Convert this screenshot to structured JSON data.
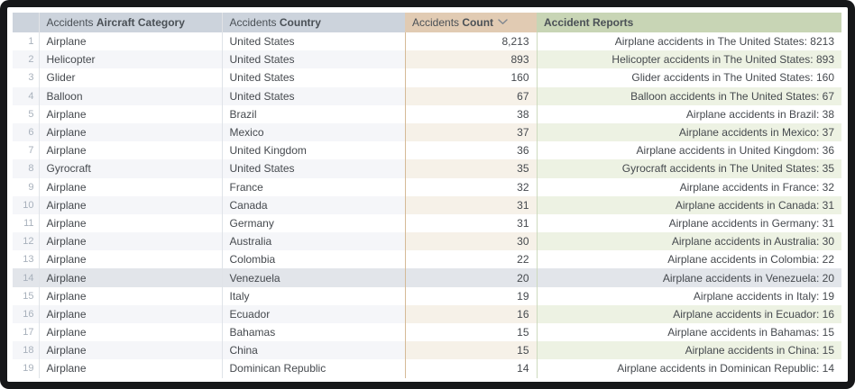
{
  "colors": {
    "frame": "#161719",
    "header_neutral": "#ccd3dc",
    "header_count": "#e1cbb3",
    "header_reports": "#c8d5b5",
    "header_text": "#4a5056",
    "cell_text": "#45494e",
    "rownum_text": "#a8b1bc",
    "stripe_neutral": "#f5f6f9",
    "stripe_count": "#f6f1e8",
    "stripe_reports": "#edf2e3",
    "selected_bg": "#e2e5ea",
    "divider_neutral": "#dfe3e8",
    "divider_count": "#d5ba97",
    "divider_reports": "#cddabe"
  },
  "table": {
    "headers": {
      "category": {
        "prefix": "Accidents",
        "label": "Aircraft Category"
      },
      "country": {
        "prefix": "Accidents",
        "label": "Country"
      },
      "count": {
        "prefix": "Accidents",
        "label": "Count",
        "sort": "descending"
      },
      "reports": {
        "label": "Accident Reports"
      }
    },
    "highlighted_row": 14,
    "rows": [
      {
        "n": "1",
        "category": "Airplane",
        "country": "United States",
        "count": "8,213",
        "report": "Airplane accidents in The United States: 8213"
      },
      {
        "n": "2",
        "category": "Helicopter",
        "country": "United States",
        "count": "893",
        "report": "Helicopter accidents in The United States: 893"
      },
      {
        "n": "3",
        "category": "Glider",
        "country": "United States",
        "count": "160",
        "report": "Glider accidents in The United States: 160"
      },
      {
        "n": "4",
        "category": "Balloon",
        "country": "United States",
        "count": "67",
        "report": "Balloon accidents in The United States: 67"
      },
      {
        "n": "5",
        "category": "Airplane",
        "country": "Brazil",
        "count": "38",
        "report": "Airplane accidents in Brazil: 38"
      },
      {
        "n": "6",
        "category": "Airplane",
        "country": "Mexico",
        "count": "37",
        "report": "Airplane accidents in Mexico: 37"
      },
      {
        "n": "7",
        "category": "Airplane",
        "country": "United Kingdom",
        "count": "36",
        "report": "Airplane accidents in United Kingdom: 36"
      },
      {
        "n": "8",
        "category": "Gyrocraft",
        "country": "United States",
        "count": "35",
        "report": "Gyrocraft accidents in The United States: 35"
      },
      {
        "n": "9",
        "category": "Airplane",
        "country": "France",
        "count": "32",
        "report": "Airplane accidents in France: 32"
      },
      {
        "n": "10",
        "category": "Airplane",
        "country": "Canada",
        "count": "31",
        "report": "Airplane accidents in Canada: 31"
      },
      {
        "n": "11",
        "category": "Airplane",
        "country": "Germany",
        "count": "31",
        "report": "Airplane accidents in Germany: 31"
      },
      {
        "n": "12",
        "category": "Airplane",
        "country": "Australia",
        "count": "30",
        "report": "Airplane accidents in Australia: 30"
      },
      {
        "n": "13",
        "category": "Airplane",
        "country": "Colombia",
        "count": "22",
        "report": "Airplane accidents in Colombia: 22"
      },
      {
        "n": "14",
        "category": "Airplane",
        "country": "Venezuela",
        "count": "20",
        "report": "Airplane accidents in Venezuela: 20"
      },
      {
        "n": "15",
        "category": "Airplane",
        "country": "Italy",
        "count": "19",
        "report": "Airplane accidents in Italy: 19"
      },
      {
        "n": "16",
        "category": "Airplane",
        "country": "Ecuador",
        "count": "16",
        "report": "Airplane accidents in Ecuador: 16"
      },
      {
        "n": "17",
        "category": "Airplane",
        "country": "Bahamas",
        "count": "15",
        "report": "Airplane accidents in Bahamas: 15"
      },
      {
        "n": "18",
        "category": "Airplane",
        "country": "China",
        "count": "15",
        "report": "Airplane accidents in China: 15"
      },
      {
        "n": "19",
        "category": "Airplane",
        "country": "Dominican Republic",
        "count": "14",
        "report": "Airplane accidents in Dominican Republic: 14"
      }
    ]
  }
}
